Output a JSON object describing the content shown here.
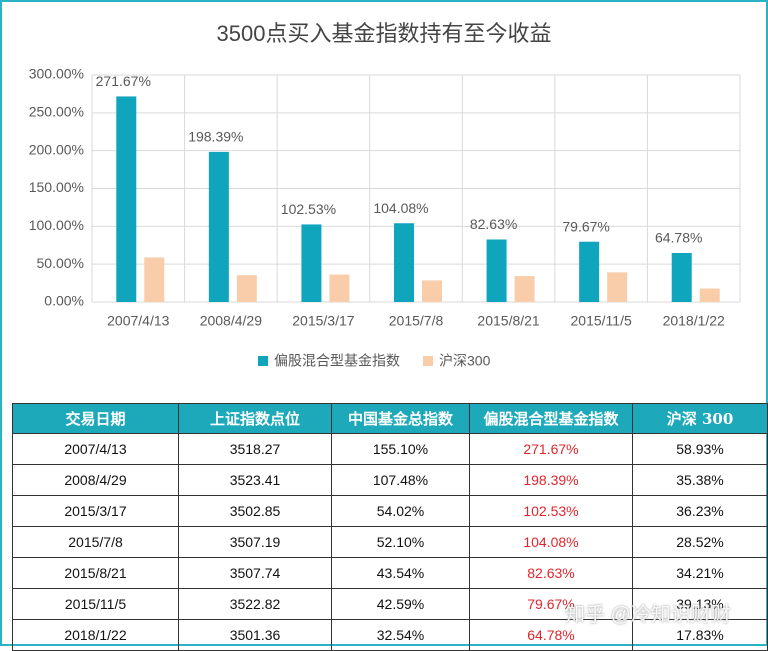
{
  "chart_data": {
    "type": "bar",
    "title": "3500点买入基金指数持有至今收益",
    "categories": [
      "2007/4/13",
      "2008/4/29",
      "2015/3/17",
      "2015/7/8",
      "2015/8/21",
      "2015/11/5",
      "2018/1/22"
    ],
    "series": [
      {
        "name": "偏股混合型基金指数",
        "color": "#0fa5bd",
        "values": [
          271.67,
          198.39,
          102.53,
          104.08,
          82.63,
          79.67,
          64.78
        ],
        "value_labels": [
          "271.67%",
          "198.39%",
          "102.53%",
          "104.08%",
          "82.63%",
          "79.67%",
          "64.78%"
        ]
      },
      {
        "name": "沪深300",
        "color": "#f9cdaa",
        "values": [
          58.93,
          35.38,
          36.23,
          28.52,
          34.21,
          39.13,
          17.83
        ]
      }
    ],
    "ylim": [
      0,
      300
    ],
    "yticks": [
      {
        "value": 0,
        "label": "0.00%"
      },
      {
        "value": 50,
        "label": "50.00%"
      },
      {
        "value": 100,
        "label": "100.00%"
      },
      {
        "value": 150,
        "label": "150.00%"
      },
      {
        "value": 200,
        "label": "200.00%"
      },
      {
        "value": 250,
        "label": "250.00%"
      },
      {
        "value": 300,
        "label": "300.00%"
      }
    ],
    "grid": true,
    "legend": "bottom"
  },
  "table": {
    "header": [
      "交易日期",
      "上证指数点位",
      "中国基金总指数",
      "偏股混合型基金指数",
      "沪深 300"
    ],
    "rows": [
      [
        "2007/4/13",
        "3518.27",
        "155.10%",
        "271.67%",
        "58.93%"
      ],
      [
        "2008/4/29",
        "3523.41",
        "107.48%",
        "198.39%",
        "35.38%"
      ],
      [
        "2015/3/17",
        "3502.85",
        "54.02%",
        "102.53%",
        "36.23%"
      ],
      [
        "2015/7/8",
        "3507.19",
        "52.10%",
        "104.08%",
        "28.52%"
      ],
      [
        "2015/8/21",
        "3507.74",
        "43.54%",
        "82.63%",
        "34.21%"
      ],
      [
        "2015/11/5",
        "3522.82",
        "42.59%",
        "79.67%",
        "39.13%"
      ],
      [
        "2018/1/22",
        "3501.36",
        "32.54%",
        "64.78%",
        "17.83%"
      ]
    ]
  },
  "watermark": "知乎 @冷知识财财"
}
